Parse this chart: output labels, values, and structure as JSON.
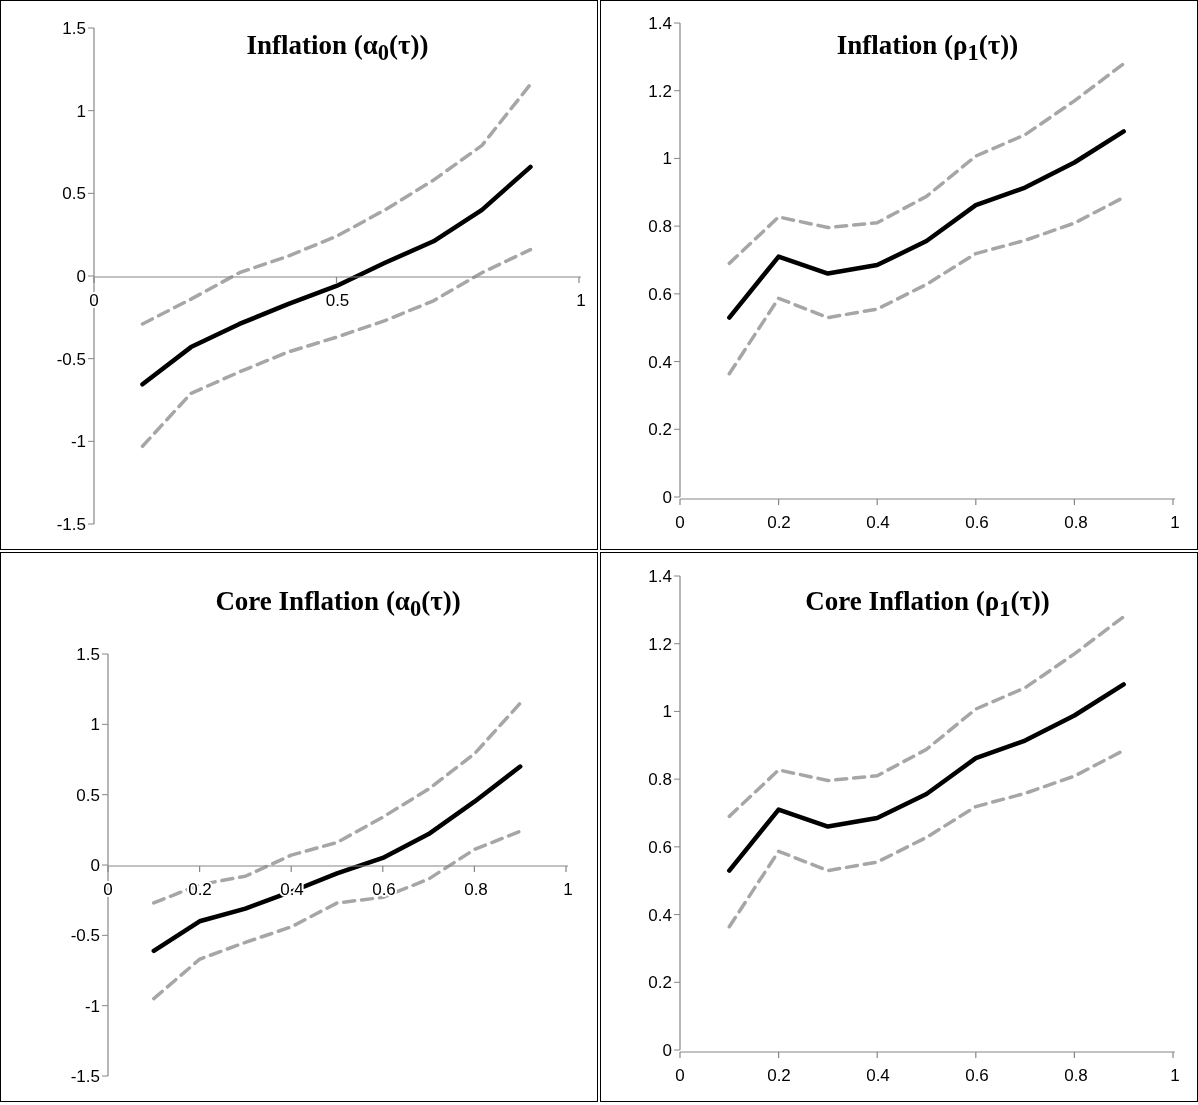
{
  "chart_data": [
    {
      "type": "line",
      "title": "Inflation (α$_{0}$(τ))",
      "x": [
        0.1,
        0.2,
        0.3,
        0.4,
        0.5,
        0.6,
        0.7,
        0.8,
        0.9
      ],
      "xlim": [
        0,
        1
      ],
      "xticks": [
        0,
        0.5,
        1
      ],
      "ylim": [
        -1.5,
        1.5
      ],
      "yticks": [
        -1.5,
        -1,
        -0.5,
        0,
        0.5,
        1,
        1.5
      ],
      "series": [
        {
          "color": "#000000",
          "line_style": "solid",
          "values": [
            -0.655,
            -0.43,
            -0.29,
            -0.17,
            -0.06,
            0.08,
            0.21,
            0.4,
            0.66
          ]
        },
        {
          "color": "#a6a6a6",
          "line_style": "dashed",
          "values": [
            -0.29,
            -0.14,
            0.02,
            0.12,
            0.24,
            0.4,
            0.58,
            0.79,
            1.16
          ]
        },
        {
          "color": "#a6a6a6",
          "line_style": "dashed",
          "values": [
            -1.03,
            -0.71,
            -0.58,
            -0.46,
            -0.37,
            -0.27,
            -0.15,
            0.02,
            0.16
          ]
        }
      ]
    },
    {
      "type": "line",
      "title": "Inflation (ρ$_{1}$(τ))",
      "x": [
        0.1,
        0.2,
        0.3,
        0.4,
        0.5,
        0.6,
        0.7,
        0.8,
        0.9
      ],
      "xlim": [
        0,
        1
      ],
      "xticks": [
        0,
        0.2,
        0.4,
        0.6,
        0.8,
        1
      ],
      "ylim": [
        0,
        1.4
      ],
      "yticks": [
        0,
        0.2,
        0.4,
        0.6,
        0.8,
        1,
        1.2,
        1.4
      ],
      "series": [
        {
          "color": "#000000",
          "line_style": "solid",
          "values": [
            0.53,
            0.71,
            0.66,
            0.685,
            0.756,
            0.862,
            0.914,
            0.988,
            1.08
          ]
        },
        {
          "color": "#a6a6a6",
          "line_style": "dashed",
          "values": [
            0.69,
            0.827,
            0.796,
            0.81,
            0.888,
            1.007,
            1.07,
            1.17,
            1.28
          ]
        },
        {
          "color": "#a6a6a6",
          "line_style": "dashed",
          "values": [
            0.364,
            0.587,
            0.53,
            0.555,
            0.628,
            0.719,
            0.758,
            0.809,
            0.885
          ]
        }
      ]
    },
    {
      "type": "line",
      "title": "Core Inflation (α$_{0}$(τ))",
      "x": [
        0.1,
        0.2,
        0.3,
        0.4,
        0.5,
        0.6,
        0.7,
        0.8,
        0.9
      ],
      "xlim": [
        0,
        1
      ],
      "xticks": [
        0,
        0.2,
        0.4,
        0.6,
        0.8,
        1
      ],
      "ylim": [
        -1.5,
        1.5
      ],
      "yticks": [
        -1.5,
        -1,
        -0.5,
        0,
        0.5,
        1,
        1.5
      ],
      "series": [
        {
          "color": "#000000",
          "line_style": "solid",
          "values": [
            -0.61,
            -0.4,
            -0.31,
            -0.19,
            -0.06,
            0.05,
            0.22,
            0.45,
            0.7
          ]
        },
        {
          "color": "#a6a6a6",
          "line_style": "dashed",
          "values": [
            -0.27,
            -0.14,
            -0.08,
            0.07,
            0.16,
            0.34,
            0.54,
            0.79,
            1.15
          ]
        },
        {
          "color": "#a6a6a6",
          "line_style": "dashed",
          "values": [
            -0.95,
            -0.67,
            -0.55,
            -0.44,
            -0.27,
            -0.23,
            -0.1,
            0.11,
            0.24
          ]
        }
      ]
    },
    {
      "type": "line",
      "title": "Core Inflation (ρ$_{1}$(τ))",
      "x": [
        0.1,
        0.2,
        0.3,
        0.4,
        0.5,
        0.6,
        0.7,
        0.8,
        0.9
      ],
      "xlim": [
        0,
        1
      ],
      "xticks": [
        0,
        0.2,
        0.4,
        0.6,
        0.8,
        1
      ],
      "ylim": [
        0,
        1.4
      ],
      "yticks": [
        0,
        0.2,
        0.4,
        0.6,
        0.8,
        1,
        1.2,
        1.4
      ],
      "series": [
        {
          "color": "#000000",
          "line_style": "solid",
          "values": [
            0.53,
            0.71,
            0.66,
            0.685,
            0.756,
            0.862,
            0.914,
            0.988,
            1.08
          ]
        },
        {
          "color": "#a6a6a6",
          "line_style": "dashed",
          "values": [
            0.69,
            0.827,
            0.796,
            0.81,
            0.888,
            1.007,
            1.07,
            1.17,
            1.28
          ]
        },
        {
          "color": "#a6a6a6",
          "line_style": "dashed",
          "values": [
            0.364,
            0.587,
            0.53,
            0.555,
            0.628,
            0.719,
            0.758,
            0.809,
            0.885
          ]
        }
      ]
    }
  ]
}
